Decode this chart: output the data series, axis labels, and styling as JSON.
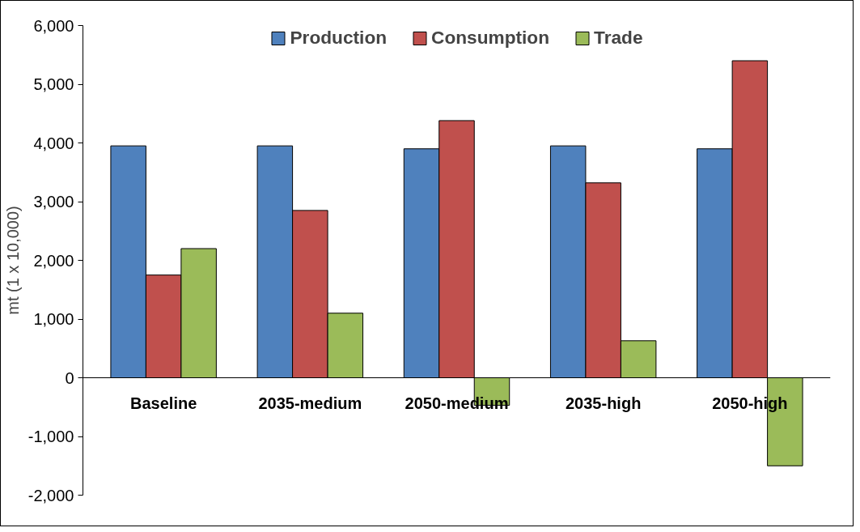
{
  "chart_data": {
    "type": "bar",
    "ylabel": "mt (1 x 10,000)",
    "categories": [
      "Baseline",
      "2035-medium",
      "2050-medium",
      "2035-high",
      "2050-high"
    ],
    "series": [
      {
        "name": "Production",
        "color": "#4f81bd",
        "values": [
          3950,
          3950,
          3900,
          3950,
          3900
        ]
      },
      {
        "name": "Consumption",
        "color": "#c0504d",
        "values": [
          1750,
          2850,
          4380,
          3320,
          5400
        ]
      },
      {
        "name": "Trade",
        "color": "#9bbb59",
        "values": [
          2200,
          1100,
          -470,
          630,
          -1500
        ]
      }
    ],
    "ylim": [
      -2000,
      6000
    ],
    "yticks": [
      {
        "value": -2000,
        "label": "-2,000"
      },
      {
        "value": -1000,
        "label": "-1,000"
      },
      0,
      {
        "value": 1000,
        "label": "1,000"
      },
      {
        "value": 2000,
        "label": "2,000"
      },
      {
        "value": 3000,
        "label": "3,000"
      },
      {
        "value": 4000,
        "label": "4,000"
      },
      {
        "value": 5000,
        "label": "5,000"
      },
      {
        "value": 6000,
        "label": "6,000"
      }
    ],
    "grid": false,
    "legend": "top"
  }
}
